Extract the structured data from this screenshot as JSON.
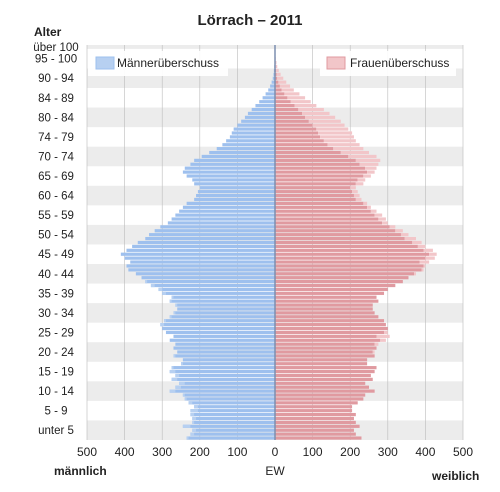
{
  "chart_data": {
    "type": "population_pyramid",
    "title": "Lörrach – 2011",
    "y_axis_title": "Alter",
    "x_axis_title": "EW",
    "left_side_label": "männlich",
    "right_side_label": "weiblich",
    "age_labels": [
      "unter 5",
      "5 - 9",
      "10 - 14",
      "15 - 19",
      "20 - 24",
      "25 - 29",
      "30 - 34",
      "35 - 39",
      "40 - 44",
      "45 - 49",
      "50 - 54",
      "55 - 59",
      "60 - 64",
      "65 - 69",
      "70 - 74",
      "74 - 79",
      "80 - 84",
      "84 - 89",
      "90 - 94",
      "95 - 100",
      "über 100"
    ],
    "x_ticks": [
      500,
      400,
      300,
      200,
      100,
      0,
      100,
      200,
      300,
      400,
      500
    ],
    "xlim": [
      -500,
      500
    ],
    "ages": [
      0,
      1,
      2,
      3,
      4,
      5,
      6,
      7,
      8,
      9,
      10,
      11,
      12,
      13,
      14,
      15,
      16,
      17,
      18,
      19,
      20,
      21,
      22,
      23,
      24,
      25,
      26,
      27,
      28,
      29,
      30,
      31,
      32,
      33,
      34,
      35,
      36,
      37,
      38,
      39,
      40,
      41,
      42,
      43,
      44,
      45,
      46,
      47,
      48,
      49,
      50,
      51,
      52,
      53,
      54,
      55,
      56,
      57,
      58,
      59,
      60,
      61,
      62,
      63,
      64,
      65,
      66,
      67,
      68,
      69,
      70,
      71,
      72,
      73,
      74,
      75,
      76,
      77,
      78,
      79,
      80,
      81,
      82,
      83,
      84,
      85,
      86,
      87,
      88,
      89,
      90,
      91,
      92,
      93,
      94,
      95,
      96,
      97,
      98,
      99,
      100
    ],
    "series": [
      {
        "name": "Männer",
        "values": [
          235,
          225,
          220,
          245,
          220,
          220,
          225,
          225,
          215,
          230,
          240,
          245,
          280,
          265,
          255,
          275,
          265,
          280,
          275,
          250,
          245,
          270,
          260,
          270,
          265,
          280,
          270,
          290,
          300,
          305,
          295,
          280,
          270,
          260,
          265,
          280,
          275,
          300,
          310,
          330,
          345,
          355,
          370,
          390,
          395,
          385,
          400,
          410,
          395,
          380,
          365,
          345,
          335,
          320,
          305,
          285,
          275,
          265,
          255,
          245,
          235,
          215,
          210,
          205,
          200,
          215,
          220,
          235,
          245,
          240,
          225,
          215,
          195,
          175,
          155,
          140,
          130,
          120,
          115,
          110,
          100,
          90,
          80,
          72,
          62,
          52,
          42,
          33,
          25,
          18,
          13,
          9,
          6,
          4,
          3,
          2,
          1,
          1,
          0,
          0,
          0
        ]
      },
      {
        "name": "Frauen",
        "values": [
          230,
          215,
          210,
          225,
          215,
          210,
          215,
          205,
          205,
          220,
          235,
          240,
          265,
          250,
          240,
          260,
          255,
          265,
          270,
          245,
          245,
          265,
          265,
          270,
          275,
          295,
          305,
          300,
          300,
          295,
          290,
          275,
          265,
          260,
          260,
          275,
          270,
          290,
          300,
          320,
          340,
          355,
          375,
          395,
          400,
          410,
          425,
          430,
          420,
          400,
          390,
          375,
          355,
          340,
          320,
          300,
          295,
          285,
          270,
          255,
          245,
          230,
          225,
          220,
          215,
          235,
          240,
          255,
          265,
          270,
          275,
          280,
          270,
          250,
          235,
          225,
          215,
          210,
          205,
          195,
          185,
          175,
          160,
          145,
          130,
          110,
          95,
          80,
          65,
          50,
          40,
          30,
          22,
          15,
          10,
          6,
          4,
          2,
          1,
          1,
          0
        ]
      }
    ],
    "legend": [
      {
        "label": "Männerüberschuss",
        "position": "top-left"
      },
      {
        "label": "Frauenüberschuss",
        "position": "top-right"
      }
    ],
    "colors": {
      "male": "#9ec0ee",
      "male_excess": "#b7d0f1",
      "female": "#e09aa0",
      "female_excess": "#f2c6c9",
      "band": "#ececec",
      "grid": "#bbbbbb",
      "center": "#7d8fb0"
    }
  }
}
